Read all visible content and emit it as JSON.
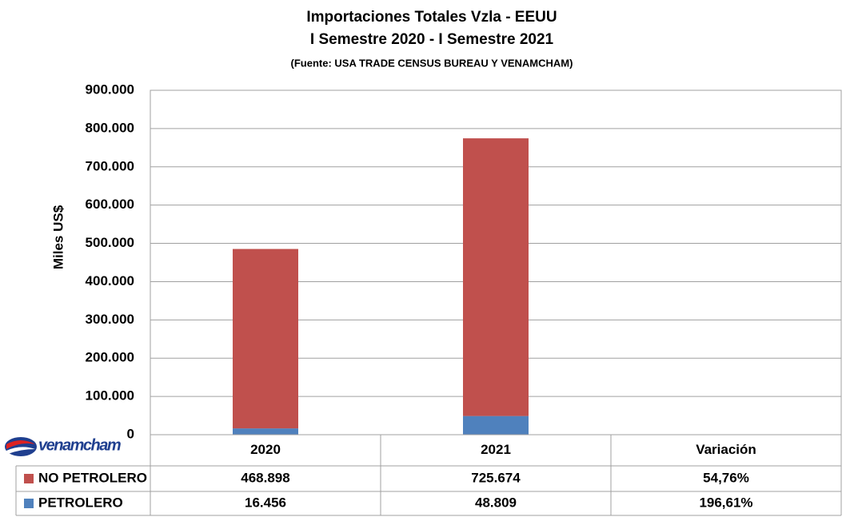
{
  "chart_data": {
    "type": "stacked_bar",
    "title": "Importaciones Totales Vzla - EEUU",
    "subtitle": "I Semestre 2020  - I Semestre 2021",
    "source": "(Fuente: USA TRADE CENSUS BUREAU Y VENAMCHAM)",
    "y_label": "Miles US$",
    "logo": "venamcham",
    "categories": [
      "2020",
      "2021"
    ],
    "variation_header": "Variación",
    "series": [
      {
        "name": "NO PETROLERO",
        "color": "#c0504d",
        "values": [
          468898,
          725674
        ],
        "value_labels": [
          "468.898",
          "725.674"
        ],
        "variation": 54.76,
        "variation_label": "54,76%"
      },
      {
        "name": "PETROLERO",
        "color": "#4f81bd",
        "values": [
          16456,
          48809
        ],
        "value_labels": [
          "16.456",
          "48.809"
        ],
        "variation": 196.61,
        "variation_label": "196,61%"
      }
    ],
    "ylim": [
      0,
      900000
    ],
    "yticks": [
      0,
      {
        "value": 100000,
        "label": "100.000"
      },
      {
        "value": 200000,
        "label": "200.000"
      },
      {
        "value": 300000,
        "label": "300.000"
      },
      {
        "value": 400000,
        "label": "400.000"
      },
      {
        "value": 500000,
        "label": "500.000"
      },
      {
        "value": 600000,
        "label": "600.000"
      },
      {
        "value": 700000,
        "label": "700.000"
      },
      {
        "value": 800000,
        "label": "800.000"
      },
      {
        "value": 900000,
        "label": "900.000"
      }
    ],
    "grid": true
  }
}
